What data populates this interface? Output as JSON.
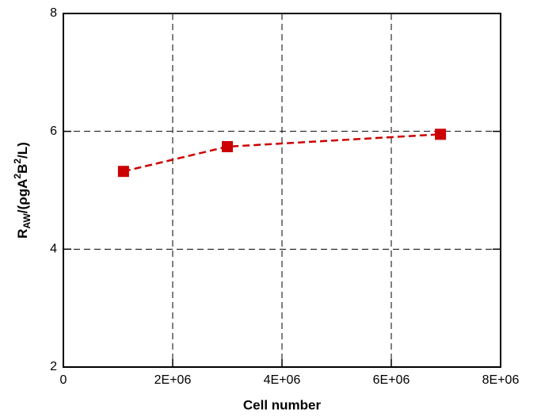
{
  "chart_data": {
    "type": "line",
    "xlabel": "Cell number",
    "ylabel": [
      "R",
      "AW",
      "/(ρgA",
      "2",
      "B",
      "2",
      "/L)"
    ],
    "x": [
      1100000,
      3000000,
      6900000
    ],
    "series": [
      {
        "color": "#cc0000",
        "values": [
          5.32,
          5.74,
          5.95
        ]
      }
    ],
    "xlim": [
      0,
      8000000
    ],
    "xticks": [
      0,
      {
        "value": 2000000,
        "label": "2E+06"
      },
      {
        "value": 4000000,
        "label": "4E+06"
      },
      {
        "value": 6000000,
        "label": "6E+06"
      },
      {
        "value": 8000000,
        "label": "8E+06"
      }
    ],
    "ylim": [
      2,
      8
    ],
    "yticks": [
      2,
      4,
      6,
      8
    ],
    "grid": true
  }
}
